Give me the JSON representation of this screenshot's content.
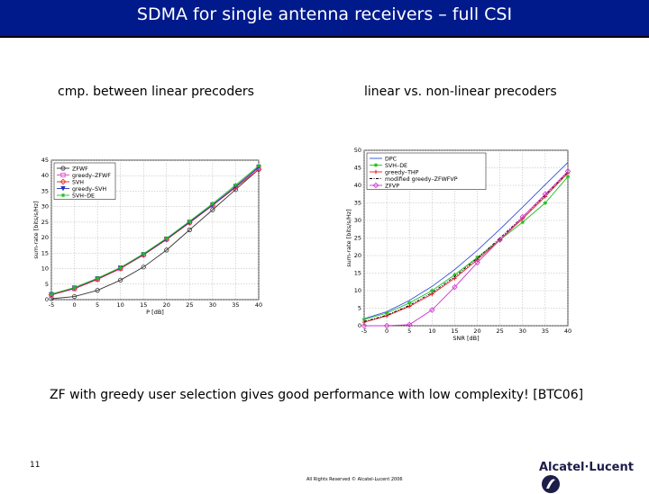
{
  "slide": {
    "title": "SDMA for single antenna receivers – full CSI",
    "left_caption": "cmp. between linear precoders",
    "right_caption": "linear vs. non-linear precoders",
    "summary": "ZF with greedy user selection gives good performance with  low complexity! [BTC06]",
    "page_number": "11",
    "footer": "All Rights Reserved © Alcatel-Lucent 2006",
    "logo": "Alcatel·Lucent"
  },
  "colors": {
    "title_bar": "#001a8c",
    "title_text": "#ffffff"
  },
  "chart_data": [
    {
      "type": "line",
      "xlabel": "P [dB]",
      "ylabel": "sum-rate [bits/s/Hz]",
      "xlim": [
        -5,
        40
      ],
      "ylim": [
        0,
        45
      ],
      "xticks": [
        -5,
        0,
        5,
        10,
        15,
        20,
        25,
        30,
        35,
        40
      ],
      "yticks": [
        0,
        5,
        10,
        15,
        20,
        25,
        30,
        35,
        40,
        45
      ],
      "grid": true,
      "legend_position": "top-left",
      "x": [
        -5,
        0,
        5,
        10,
        15,
        20,
        25,
        30,
        35,
        40
      ],
      "series": [
        {
          "name": "ZFWF",
          "color": "#333333",
          "marker": "circle",
          "values": [
            0.3,
            1.0,
            3.0,
            6.3,
            10.5,
            16.0,
            22.5,
            29.0,
            35.5,
            42.0
          ]
        },
        {
          "name": "greedy–ZFWF",
          "color": "#e040c0",
          "marker": "square",
          "values": [
            1.5,
            3.5,
            6.5,
            10.0,
            14.5,
            19.5,
            25.0,
            30.5,
            36.5,
            42.5
          ]
        },
        {
          "name": "SVH",
          "color": "#e02020",
          "marker": "diamond",
          "values": [
            1.6,
            3.6,
            6.6,
            10.1,
            14.4,
            19.4,
            24.8,
            30.4,
            36.2,
            42.0
          ]
        },
        {
          "name": "greedy–SVH",
          "color": "#2030c0",
          "marker": "triangle",
          "values": [
            1.7,
            3.8,
            6.8,
            10.3,
            14.6,
            19.6,
            25.0,
            30.6,
            36.5,
            42.8
          ]
        },
        {
          "name": "SVH–DE",
          "color": "#20c020",
          "marker": "star",
          "values": [
            1.8,
            3.9,
            6.9,
            10.4,
            14.8,
            19.8,
            25.3,
            31.0,
            37.0,
            43.2
          ]
        }
      ]
    },
    {
      "type": "line",
      "xlabel": "SNR [dB]",
      "ylabel": "sum-rate [bits/s/Hz]",
      "xlim": [
        -5,
        40
      ],
      "ylim": [
        0,
        50
      ],
      "xticks": [
        -5,
        0,
        5,
        10,
        15,
        20,
        25,
        30,
        35,
        40
      ],
      "yticks": [
        0,
        5,
        10,
        15,
        20,
        25,
        30,
        35,
        40,
        45,
        50
      ],
      "grid": true,
      "legend_position": "top-left",
      "x": [
        -5,
        0,
        5,
        10,
        15,
        20,
        25,
        30,
        35,
        40
      ],
      "series": [
        {
          "name": "DPC",
          "color": "#3050e0",
          "marker": "none",
          "values": [
            2.0,
            4.0,
            7.2,
            11.2,
            16.0,
            21.5,
            27.5,
            33.8,
            40.2,
            46.5
          ]
        },
        {
          "name": "SVH–DE",
          "color": "#20c020",
          "marker": "star",
          "values": [
            1.8,
            3.6,
            6.5,
            10.0,
            14.5,
            19.5,
            24.5,
            29.5,
            35.0,
            42.5
          ]
        },
        {
          "name": "greedy–THP",
          "color": "#e02020",
          "marker": "plus",
          "values": [
            1.0,
            2.8,
            5.5,
            9.0,
            13.5,
            18.8,
            24.5,
            30.5,
            36.8,
            43.5
          ]
        },
        {
          "name": "modified greedy–ZFWFVP",
          "color": "#000000",
          "marker": "none",
          "values": [
            1.2,
            3.0,
            5.8,
            9.4,
            14.0,
            19.2,
            25.0,
            31.0,
            37.2,
            43.8
          ]
        },
        {
          "name": "ZFVP",
          "color": "#d030d0",
          "marker": "diamond",
          "values": [
            0.0,
            0.0,
            0.3,
            4.5,
            11.0,
            18.0,
            24.5,
            31.0,
            37.5,
            44.0
          ]
        }
      ]
    }
  ]
}
